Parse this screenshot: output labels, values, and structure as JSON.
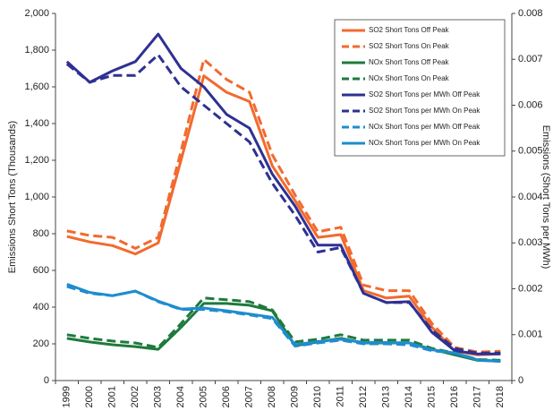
{
  "chart_data": {
    "type": "line",
    "y_label": "Emissions Short Tons (Thousands)",
    "y2_label": "Emissions (Short Tons per MWh)",
    "categories": [
      "1999",
      "2000",
      "2001",
      "2002",
      "2003",
      "2004",
      "2005",
      "2006",
      "2007",
      "2008",
      "2009",
      "2010",
      "2011",
      "2012",
      "2013",
      "2014",
      "2015",
      "2016",
      "2017",
      "2018"
    ],
    "ylim": [
      0,
      2000
    ],
    "yticks": [
      0,
      200,
      400,
      600,
      800,
      {
        "value": 1000,
        "label": "1,000"
      },
      {
        "value": 1200,
        "label": "1,200"
      },
      {
        "value": 1400,
        "label": "1,400"
      },
      {
        "value": 1600,
        "label": "1,600"
      },
      {
        "value": 1800,
        "label": "1,800"
      },
      {
        "value": 2000,
        "label": "2,000"
      }
    ],
    "y2lim": [
      0,
      0.008
    ],
    "y2ticks": [
      0,
      0.001,
      0.002,
      0.003,
      0.004,
      0.005,
      0.006,
      0.007,
      0.008
    ],
    "legend": "upper right",
    "series": [
      {
        "name": "SO2 Short Tons Off Peak",
        "color": "#f26a2e",
        "dashed": false,
        "values": [
          785,
          755,
          735,
          690,
          750,
          1200,
          1660,
          1570,
          1520,
          1170,
          980,
          780,
          795,
          490,
          450,
          460,
          290,
          160,
          140,
          145
        ]
      },
      {
        "name": "SO2 Short Tons On Peak",
        "color": "#f26a2e",
        "dashed": true,
        "values": [
          815,
          790,
          780,
          720,
          780,
          1250,
          1750,
          1640,
          1570,
          1230,
          1010,
          810,
          835,
          520,
          490,
          490,
          310,
          180,
          155,
          160
        ]
      },
      {
        "name": "NOx Short Tons Off Peak",
        "color": "#1e7a3c",
        "dashed": false,
        "values": [
          230,
          210,
          195,
          185,
          170,
          290,
          420,
          420,
          410,
          380,
          190,
          210,
          230,
          205,
          205,
          205,
          170,
          140,
          110,
          105
        ]
      },
      {
        "name": "NOx Short Tons On Peak",
        "color": "#1e7a3c",
        "dashed": true,
        "values": [
          250,
          230,
          215,
          205,
          180,
          310,
          450,
          440,
          430,
          385,
          210,
          225,
          250,
          220,
          220,
          220,
          175,
          150,
          115,
          110
        ]
      },
      {
        "name": "SO2 Short Tons per MWh Off Peak",
        "color": "#2e3192",
        "dashed": false,
        "axis": "y2",
        "values": [
          0.00695,
          0.0065,
          0.00675,
          0.00695,
          0.00755,
          0.0068,
          0.0064,
          0.0058,
          0.0055,
          0.0045,
          0.0038,
          0.00295,
          0.00295,
          0.0019,
          0.0017,
          0.00172,
          0.00105,
          0.00065,
          0.00058,
          0.00058
        ]
      },
      {
        "name": "SO2 Short Tons per MWh On Peak",
        "color": "#2e3192",
        "dashed": true,
        "axis": "y2",
        "values": [
          0.0069,
          0.0065,
          0.00665,
          0.00665,
          0.0071,
          0.0064,
          0.006,
          0.0056,
          0.0052,
          0.0043,
          0.0036,
          0.0028,
          0.0029,
          0.0019,
          0.0017,
          0.0017,
          0.0011,
          0.0007,
          0.0006,
          0.0006
        ]
      },
      {
        "name": "NOx Short Tons per MWh Off Peak",
        "color": "#1f8ccf",
        "dashed": true,
        "axis": "y2",
        "values": [
          0.00205,
          0.0019,
          0.00185,
          0.00195,
          0.00172,
          0.00155,
          0.00155,
          0.0015,
          0.00143,
          0.00135,
          0.00075,
          0.00082,
          0.00088,
          0.0008,
          0.0008,
          0.00078,
          0.00065,
          0.0006,
          0.00045,
          0.00042
        ]
      },
      {
        "name": "NOx Short Tons per MWh On Peak",
        "color": "#1f8ccf",
        "dashed": false,
        "axis": "y2",
        "values": [
          0.0021,
          0.00192,
          0.00185,
          0.00195,
          0.00173,
          0.00156,
          0.00158,
          0.00152,
          0.00145,
          0.00138,
          0.00078,
          0.00085,
          0.0009,
          0.00083,
          0.00083,
          0.00082,
          0.00067,
          0.0006,
          0.00045,
          0.00042
        ]
      }
    ]
  }
}
